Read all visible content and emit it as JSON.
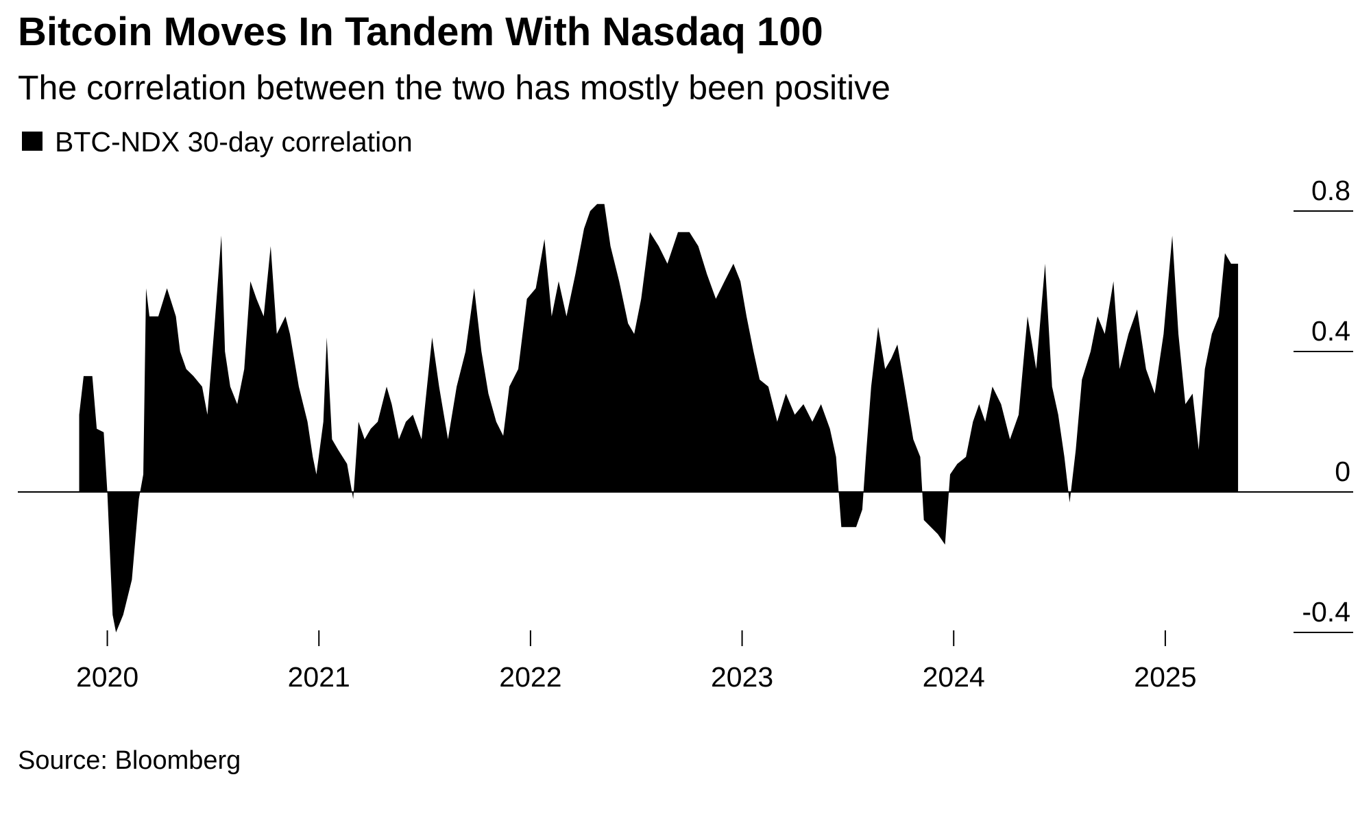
{
  "chart_data": {
    "type": "area",
    "title": "Bitcoin Moves In Tandem With Nasdaq 100",
    "subtitle": "The correlation between the two has mostly been positive",
    "source": "Source: Bloomberg",
    "x": [
      2019.867,
      2019.888,
      2019.929,
      2019.95,
      2019.983,
      2020.0,
      2020.025,
      2020.041,
      2020.075,
      2020.116,
      2020.149,
      2020.17,
      2020.183,
      2020.199,
      2020.241,
      2020.282,
      2020.324,
      2020.344,
      2020.373,
      2020.407,
      2020.448,
      2020.473,
      2020.51,
      2020.539,
      2020.556,
      2020.581,
      2020.614,
      2020.647,
      2020.676,
      2020.705,
      2020.739,
      2020.772,
      2020.801,
      2020.842,
      2020.863,
      2020.905,
      2020.946,
      2020.971,
      2020.988,
      2021.021,
      2021.037,
      2021.062,
      2021.091,
      2021.133,
      2021.162,
      2021.187,
      2021.216,
      2021.245,
      2021.278,
      2021.32,
      2021.344,
      2021.378,
      2021.411,
      2021.444,
      2021.485,
      2021.535,
      2021.568,
      2021.61,
      2021.651,
      2021.693,
      2021.734,
      2021.768,
      2021.801,
      2021.838,
      2021.871,
      2021.9,
      2021.942,
      2021.983,
      2022.025,
      2022.066,
      2022.1,
      2022.133,
      2022.17,
      2022.212,
      2022.253,
      2022.282,
      2022.315,
      2022.349,
      2022.378,
      2022.419,
      2022.461,
      2022.49,
      2022.523,
      2022.564,
      2022.606,
      2022.647,
      2022.697,
      2022.751,
      2022.793,
      2022.834,
      2022.876,
      2022.917,
      2022.959,
      2022.992,
      2023.021,
      2023.054,
      2023.083,
      2023.124,
      2023.166,
      2023.207,
      2023.249,
      2023.29,
      2023.332,
      2023.373,
      2023.415,
      2023.444,
      2023.469,
      2023.498,
      2023.539,
      2023.568,
      2023.585,
      2023.61,
      2023.643,
      2023.676,
      2023.705,
      2023.734,
      2023.768,
      2023.809,
      2023.842,
      2023.859,
      2023.892,
      2023.925,
      2023.959,
      2023.983,
      2024.017,
      2024.058,
      2024.091,
      2024.12,
      2024.149,
      2024.183,
      2024.224,
      2024.266,
      2024.307,
      2024.349,
      2024.39,
      2024.432,
      2024.465,
      2024.494,
      2024.523,
      2024.548,
      2024.577,
      2024.606,
      2024.647,
      2024.68,
      2024.714,
      2024.755,
      2024.784,
      2024.826,
      2024.867,
      2024.909,
      2024.95,
      2024.992,
      2025.033,
      2025.062,
      2025.095,
      2025.129,
      2025.158,
      2025.187,
      2025.22,
      2025.253,
      2025.282,
      2025.311,
      2025.344
    ],
    "series": [
      {
        "name": "BTC-NDX 30-day correlation",
        "color": "#000000",
        "values": [
          0.22,
          0.33,
          0.33,
          0.18,
          0.17,
          0,
          -0.35,
          -0.4,
          -0.35,
          -0.25,
          -0.02,
          0.05,
          0.58,
          0.5,
          0.5,
          0.58,
          0.5,
          0.4,
          0.35,
          0.33,
          0.3,
          0.22,
          0.5,
          0.73,
          0.4,
          0.3,
          0.25,
          0.35,
          0.6,
          0.55,
          0.5,
          0.7,
          0.45,
          0.5,
          0.45,
          0.3,
          0.2,
          0.1,
          0.05,
          0.2,
          0.44,
          0.15,
          0.12,
          0.08,
          -0.02,
          0.2,
          0.15,
          0.18,
          0.2,
          0.3,
          0.25,
          0.15,
          0.2,
          0.22,
          0.15,
          0.44,
          0.3,
          0.15,
          0.3,
          0.4,
          0.58,
          0.4,
          0.28,
          0.2,
          0.16,
          0.3,
          0.35,
          0.55,
          0.58,
          0.72,
          0.5,
          0.6,
          0.5,
          0.62,
          0.75,
          0.8,
          0.82,
          0.82,
          0.7,
          0.6,
          0.48,
          0.45,
          0.55,
          0.74,
          0.7,
          0.65,
          0.74,
          0.74,
          0.7,
          0.62,
          0.55,
          0.6,
          0.65,
          0.6,
          0.5,
          0.4,
          0.32,
          0.3,
          0.2,
          0.28,
          0.22,
          0.25,
          0.2,
          0.25,
          0.18,
          0.1,
          -0.1,
          -0.1,
          -0.1,
          -0.05,
          0.1,
          0.3,
          0.47,
          0.35,
          0.38,
          0.42,
          0.3,
          0.15,
          0.1,
          -0.08,
          -0.1,
          -0.12,
          -0.15,
          0.05,
          0.08,
          0.1,
          0.2,
          0.25,
          0.2,
          0.3,
          0.25,
          0.15,
          0.22,
          0.5,
          0.35,
          0.65,
          0.3,
          0.22,
          0.1,
          -0.03,
          0.12,
          0.32,
          0.4,
          0.5,
          0.45,
          0.6,
          0.35,
          0.45,
          0.52,
          0.35,
          0.28,
          0.45,
          0.73,
          0.45,
          0.25,
          0.28,
          0.12,
          0.35,
          0.45,
          0.5,
          0.68,
          0.65,
          0.65
        ]
      }
    ],
    "xlim": [
      2019.577,
      2025.888
    ],
    "xticks": [
      2020,
      2021,
      2022,
      2023,
      2024,
      2025
    ],
    "ylim": [
      -0.4,
      0.8
    ],
    "yticks": [
      -0.4,
      0,
      0.4,
      0.8
    ]
  }
}
